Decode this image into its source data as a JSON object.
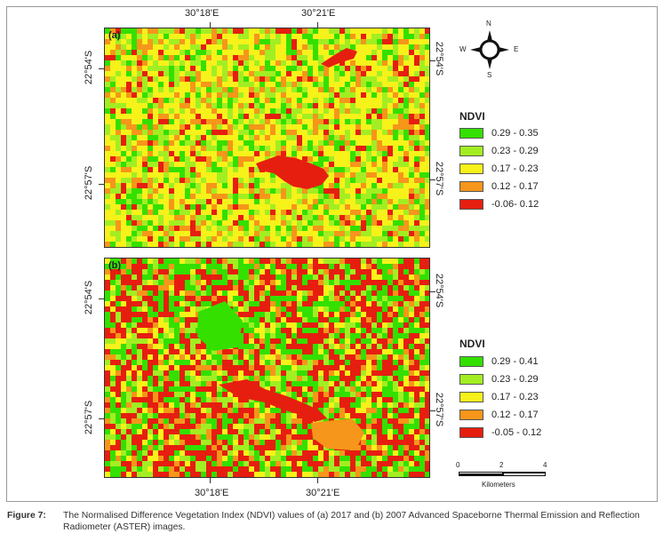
{
  "top_axis": {
    "ticks": [
      "30°18'E",
      "30°21'E"
    ]
  },
  "bottom_axis": {
    "ticks": [
      "30°18'E",
      "30°21'E"
    ]
  },
  "panel_a": {
    "label": "(a)",
    "left_ticks": [
      "22°54'S",
      "22°57'S"
    ],
    "right_ticks": [
      "22°54'S",
      "22°57'S"
    ],
    "legend": {
      "title": "NDVI",
      "classes": [
        {
          "label": "0.29 - 0.35",
          "color": "#33e000"
        },
        {
          "label": "0.23 - 0.29",
          "color": "#a2ee22"
        },
        {
          "label": "0.17 - 0.23",
          "color": "#f6f21a"
        },
        {
          "label": "0.12 - 0.17",
          "color": "#f6961a"
        },
        {
          "label": "-0.06- 0.12",
          "color": "#e61e10"
        }
      ]
    }
  },
  "panel_b": {
    "label": "(b)",
    "left_ticks": [
      "22°54'S",
      "22°57'S"
    ],
    "right_ticks": [
      "22°54'S",
      "22°57'S"
    ],
    "legend": {
      "title": "NDVI",
      "classes": [
        {
          "label": "0.29 - 0.41",
          "color": "#33e000"
        },
        {
          "label": "0.23 - 0.29",
          "color": "#a2ee22"
        },
        {
          "label": "0.17 - 0.23",
          "color": "#f6f21a"
        },
        {
          "label": "0.12 - 0.17",
          "color": "#f6961a"
        },
        {
          "label": "-0.05 - 0.12",
          "color": "#e61e10"
        }
      ]
    }
  },
  "compass": {
    "n": "N",
    "s": "S",
    "e": "E",
    "w": "W"
  },
  "scalebar": {
    "ticks": [
      "0",
      "2",
      "4"
    ],
    "unit": "Kilometers"
  },
  "caption": {
    "figure": "Figure 7:",
    "text": "The Normalised Difference Vegetation Index (NDVI) values of (a) 2017 and (b) 2007 Advanced Spaceborne Thermal Emission and Reflection",
    "text2": "Radiometer (ASTER) images."
  }
}
